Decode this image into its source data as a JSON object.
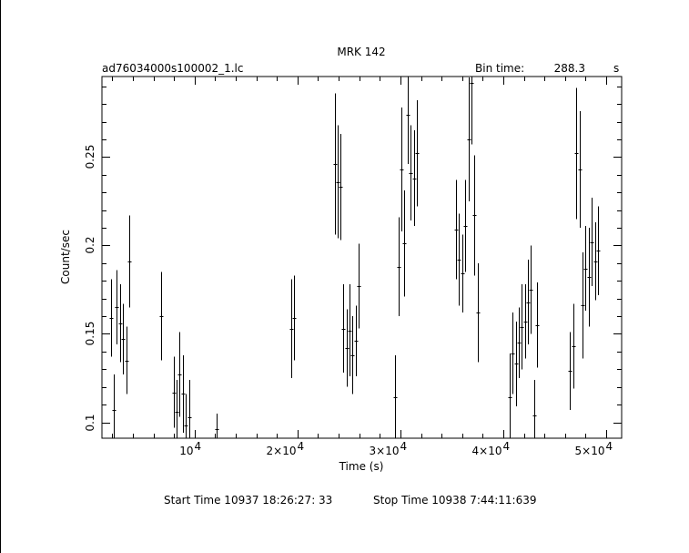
{
  "chart_data": {
    "type": "scatter",
    "style": "error-bars",
    "title": "MRK 142",
    "subtitle_left": "ad76034000s100002_1.lc",
    "bin_time": {
      "label": "Bin time:",
      "value": "288.3",
      "unit": "s"
    },
    "xlabel": "Time (s)",
    "ylabel": "Count/sec",
    "xlim": [
      1000,
      51500
    ],
    "ylim": [
      0.091,
      0.2955
    ],
    "x_scale": "linear",
    "y_scale": "linear",
    "grid": false,
    "x_ticks": [
      {
        "value": 10000,
        "label": "10"
      },
      {
        "value": 20000,
        "label": "2×10"
      },
      {
        "value": 30000,
        "label": "3×10"
      },
      {
        "value": 40000,
        "label": "4×10"
      },
      {
        "value": 50000,
        "label": "5×10"
      }
    ],
    "x_tick_exponent": "4",
    "y_ticks": [
      {
        "value": 0.1,
        "label": "0.1"
      },
      {
        "value": 0.15,
        "label": "0.15"
      },
      {
        "value": 0.2,
        "label": "0.2"
      },
      {
        "value": 0.25,
        "label": "0.25"
      }
    ],
    "series": [
      {
        "x": [
          1850,
          2150,
          2450,
          2750,
          3050,
          3350,
          3650,
          6750,
          7950,
          8250,
          8550,
          8850,
          9150,
          9450,
          12100,
          19400,
          19700,
          23600,
          23900,
          24150,
          24450,
          24750,
          25050,
          25350,
          25650,
          25950,
          29500,
          29800,
          30100,
          30400,
          30700,
          31000,
          31300,
          31600,
          35400,
          35700,
          36000,
          36300,
          36600,
          36900,
          37200,
          37500,
          40600,
          40900,
          41200,
          41500,
          41800,
          42100,
          42400,
          42700,
          43000,
          43300,
          46500,
          46800,
          47100,
          47400,
          47700,
          48000,
          48300,
          48600,
          48900,
          49200
        ],
        "y": [
          0.159,
          0.107,
          0.165,
          0.156,
          0.147,
          0.135,
          0.191,
          0.16,
          0.117,
          0.106,
          0.127,
          0.116,
          0.098,
          0.103,
          0.096,
          0.153,
          0.159,
          0.246,
          0.236,
          0.233,
          0.153,
          0.142,
          0.152,
          0.138,
          0.146,
          0.177,
          0.114,
          0.188,
          0.243,
          0.201,
          0.274,
          0.241,
          0.238,
          0.252,
          0.209,
          0.192,
          0.184,
          0.211,
          0.26,
          0.292,
          0.217,
          0.162,
          0.114,
          0.139,
          0.133,
          0.145,
          0.154,
          0.157,
          0.168,
          0.175,
          0.104,
          0.155,
          0.129,
          0.143,
          0.252,
          0.243,
          0.166,
          0.187,
          0.182,
          0.202,
          0.191,
          0.197
        ],
        "err": [
          0.022,
          0.02,
          0.021,
          0.022,
          0.02,
          0.019,
          0.026,
          0.025,
          0.02,
          0.018,
          0.024,
          0.022,
          0.018,
          0.021,
          0.009,
          0.028,
          0.024,
          0.04,
          0.032,
          0.03,
          0.025,
          0.022,
          0.026,
          0.022,
          0.02,
          0.024,
          0.024,
          0.028,
          0.035,
          0.03,
          0.028,
          0.027,
          0.027,
          0.03,
          0.028,
          0.026,
          0.022,
          0.026,
          0.035,
          0.035,
          0.034,
          0.028,
          0.025,
          0.023,
          0.024,
          0.02,
          0.024,
          0.021,
          0.024,
          0.025,
          0.02,
          0.024,
          0.022,
          0.024,
          0.037,
          0.033,
          0.03,
          0.024,
          0.028,
          0.025,
          0.022,
          0.025
        ]
      }
    ]
  },
  "footer": {
    "start_time": "Start Time 10937 18:26:27: 33",
    "stop_time": "Stop Time 10938  7:44:11:639"
  }
}
